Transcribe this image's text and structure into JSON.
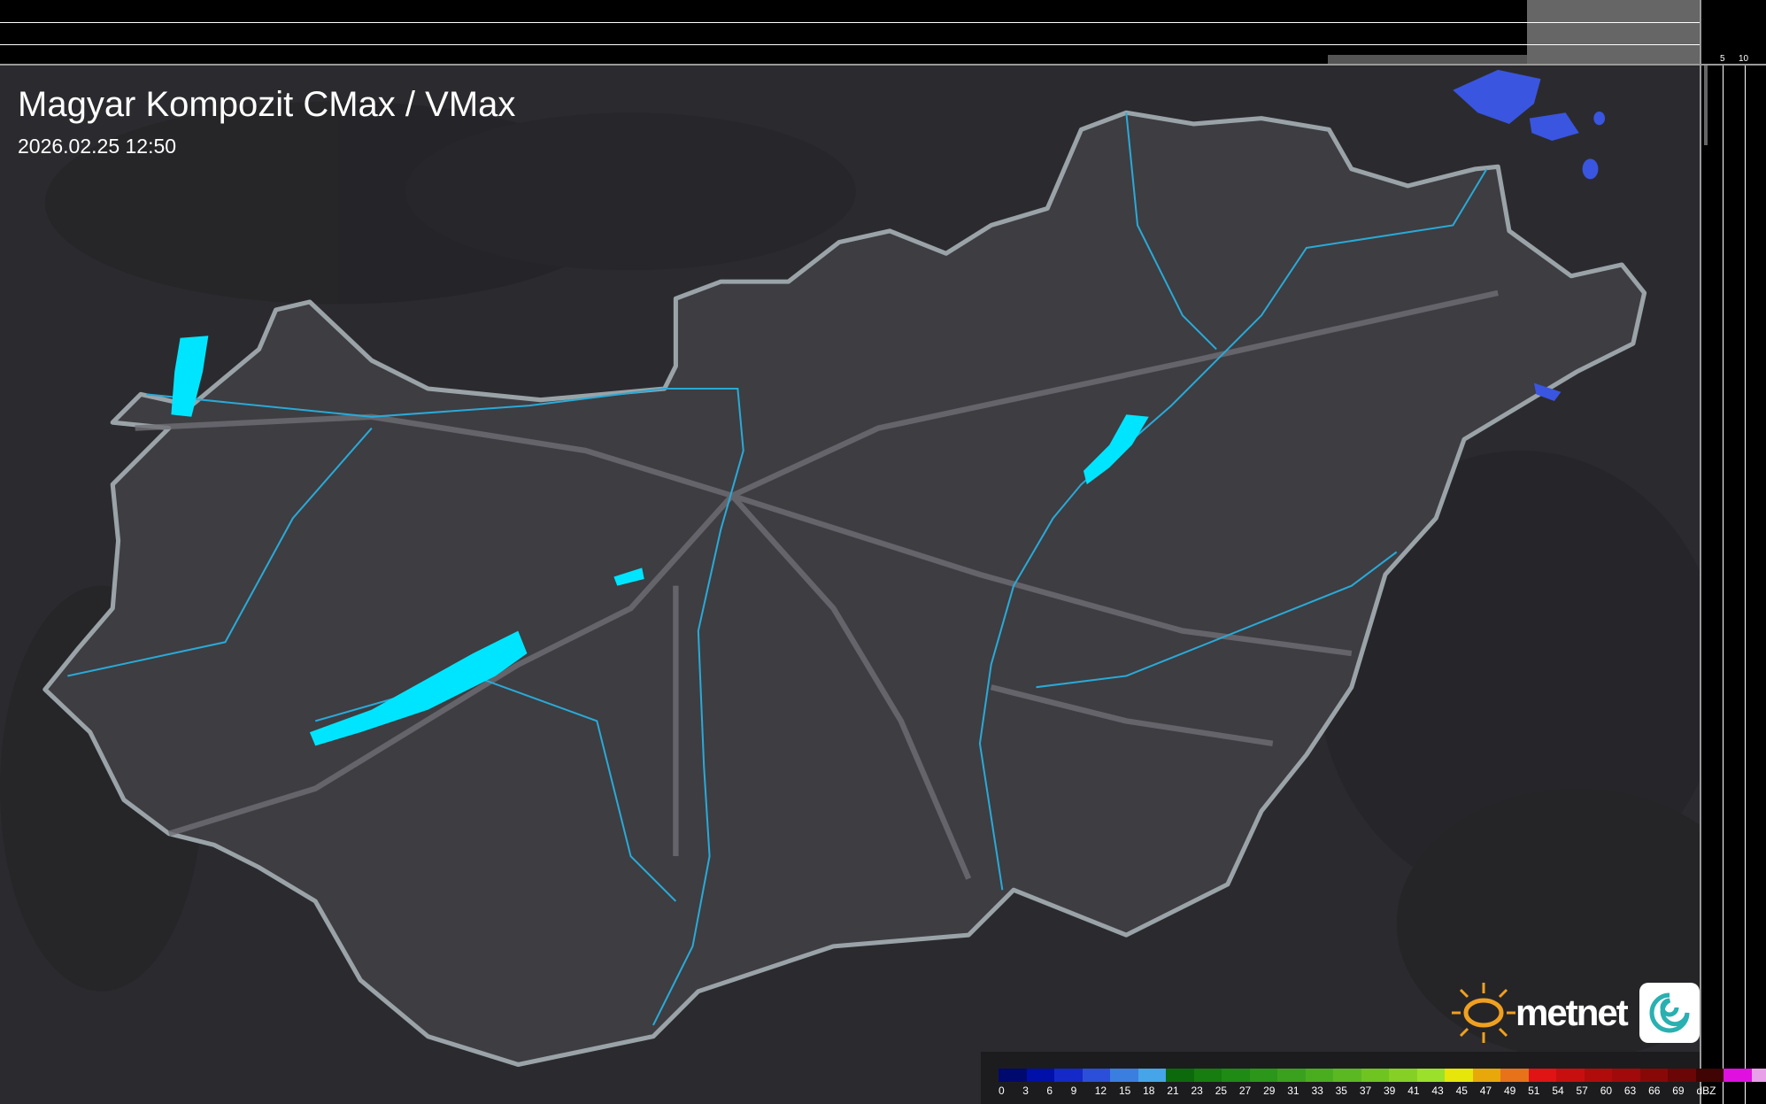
{
  "header": {
    "title": "Magyar Kompozit CMax / VMax",
    "timestamp": "2026.02.25 12:50"
  },
  "profile_top": {
    "tick_labels": [
      "10",
      "5"
    ]
  },
  "profile_side": {
    "tick_labels": [
      "5",
      "10"
    ]
  },
  "logo": {
    "text": "metnet"
  },
  "legend": {
    "unit": "dBZ",
    "labels": [
      "0",
      "3",
      "6",
      "9",
      "12",
      "15",
      "18",
      "21",
      "23",
      "25",
      "27",
      "29",
      "31",
      "33",
      "35",
      "37",
      "39",
      "41",
      "43",
      "45",
      "47",
      "49",
      "51",
      "54",
      "57",
      "60",
      "63",
      "66",
      "69"
    ],
    "colors": [
      "#000a6e",
      "#0010a8",
      "#1429c8",
      "#2b4fd8",
      "#3a7ee0",
      "#45a5e8",
      "#0c6a0c",
      "#177d10",
      "#1f8a14",
      "#2b961a",
      "#3aa11e",
      "#4aad20",
      "#5cb822",
      "#6fc422",
      "#86d026",
      "#9be02a",
      "#e6e60a",
      "#e8a80a",
      "#e8721a",
      "#e01414",
      "#c80f0f",
      "#b00c0c",
      "#a00a0a",
      "#880808",
      "#6a0606",
      "#400404",
      "#e010e0",
      "#e8a0e8",
      "#8ee4ec"
    ]
  },
  "colors": {
    "background": "#2b2b2f",
    "country": "#3d3d42",
    "border": "#9aa3a8",
    "water": "#00e5ff",
    "rivers": "#2aa9d6",
    "precip": "#3a55e0"
  }
}
